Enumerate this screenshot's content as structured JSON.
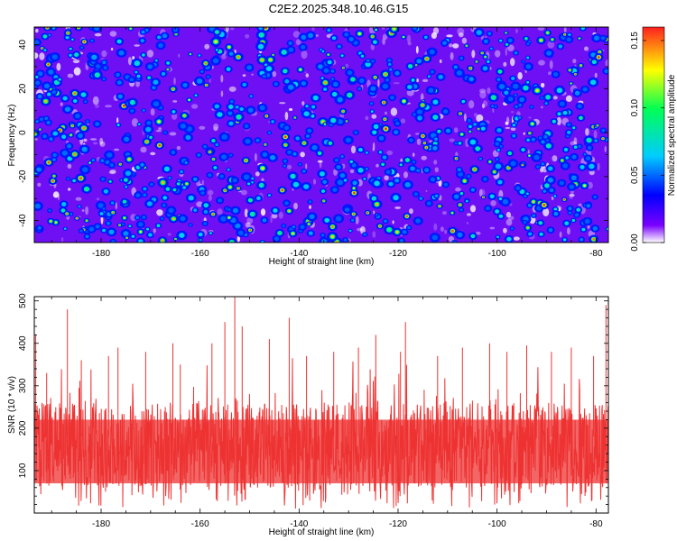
{
  "title": "C2E2.2025.348.10.46.G15",
  "chart_data": [
    {
      "type": "heatmap",
      "xlabel": "Height of straight line (km)",
      "ylabel": "Frequency (Hz)",
      "xlim": [
        -193.5,
        -77.5
      ],
      "ylim": [
        -50,
        48
      ],
      "xticks": [
        -180,
        -160,
        -140,
        -120,
        -100,
        -80
      ],
      "yticks": [
        -40,
        -20,
        0,
        20,
        40
      ],
      "colorbar": {
        "label": "Normalized spectral amplitude",
        "range": [
          0.0,
          0.16
        ],
        "ticks": [
          "0.00",
          "0.05",
          "0.10",
          "0.15"
        ],
        "ticks_values": [
          0.0,
          0.05,
          0.1,
          0.15
        ],
        "colors": [
          "#ffffff",
          "#7a00ff",
          "#0000ff",
          "#00ccff",
          "#00ff55",
          "#ffff00",
          "#ff2020"
        ]
      },
      "background_level": 0.015,
      "note_text": "",
      "typical_peak_range": [
        0.05,
        0.16
      ],
      "grid": false
    },
    {
      "type": "line",
      "xlabel": "Height of straight line (km)",
      "ylabel": "SNR (10 * v/v)",
      "xlim": [
        -193.5,
        -77.5
      ],
      "ylim": [
        0,
        510
      ],
      "xticks": [
        -180,
        -160,
        -140,
        -120,
        -100,
        -80
      ],
      "yticks": [
        100,
        200,
        300,
        400,
        500
      ],
      "color": "#ee3333",
      "grid": false,
      "typical_band": [
        60,
        260
      ],
      "baseline_min": 10,
      "peaks": [
        {
          "x": -193.2,
          "y": 420
        },
        {
          "x": -191.0,
          "y": 330
        },
        {
          "x": -186.8,
          "y": 480
        },
        {
          "x": -184.0,
          "y": 360
        },
        {
          "x": -178.5,
          "y": 370
        },
        {
          "x": -176.6,
          "y": 390
        },
        {
          "x": -171.0,
          "y": 380
        },
        {
          "x": -165.5,
          "y": 400
        },
        {
          "x": -164.0,
          "y": 350
        },
        {
          "x": -157.6,
          "y": 400
        },
        {
          "x": -155.0,
          "y": 450
        },
        {
          "x": -153.0,
          "y": 510
        },
        {
          "x": -151.5,
          "y": 440
        },
        {
          "x": -146.0,
          "y": 410
        },
        {
          "x": -142.0,
          "y": 460
        },
        {
          "x": -138.5,
          "y": 370
        },
        {
          "x": -133.0,
          "y": 380
        },
        {
          "x": -128.0,
          "y": 390
        },
        {
          "x": -124.5,
          "y": 420
        },
        {
          "x": -119.5,
          "y": 380
        },
        {
          "x": -118.5,
          "y": 450
        },
        {
          "x": -112.0,
          "y": 370
        },
        {
          "x": -107.0,
          "y": 390
        },
        {
          "x": -101.5,
          "y": 400
        },
        {
          "x": -98.0,
          "y": 380
        },
        {
          "x": -94.0,
          "y": 395
        },
        {
          "x": -89.0,
          "y": 380
        },
        {
          "x": -85.0,
          "y": 390
        },
        {
          "x": -80.5,
          "y": 370
        },
        {
          "x": -78.0,
          "y": 490
        }
      ]
    }
  ]
}
